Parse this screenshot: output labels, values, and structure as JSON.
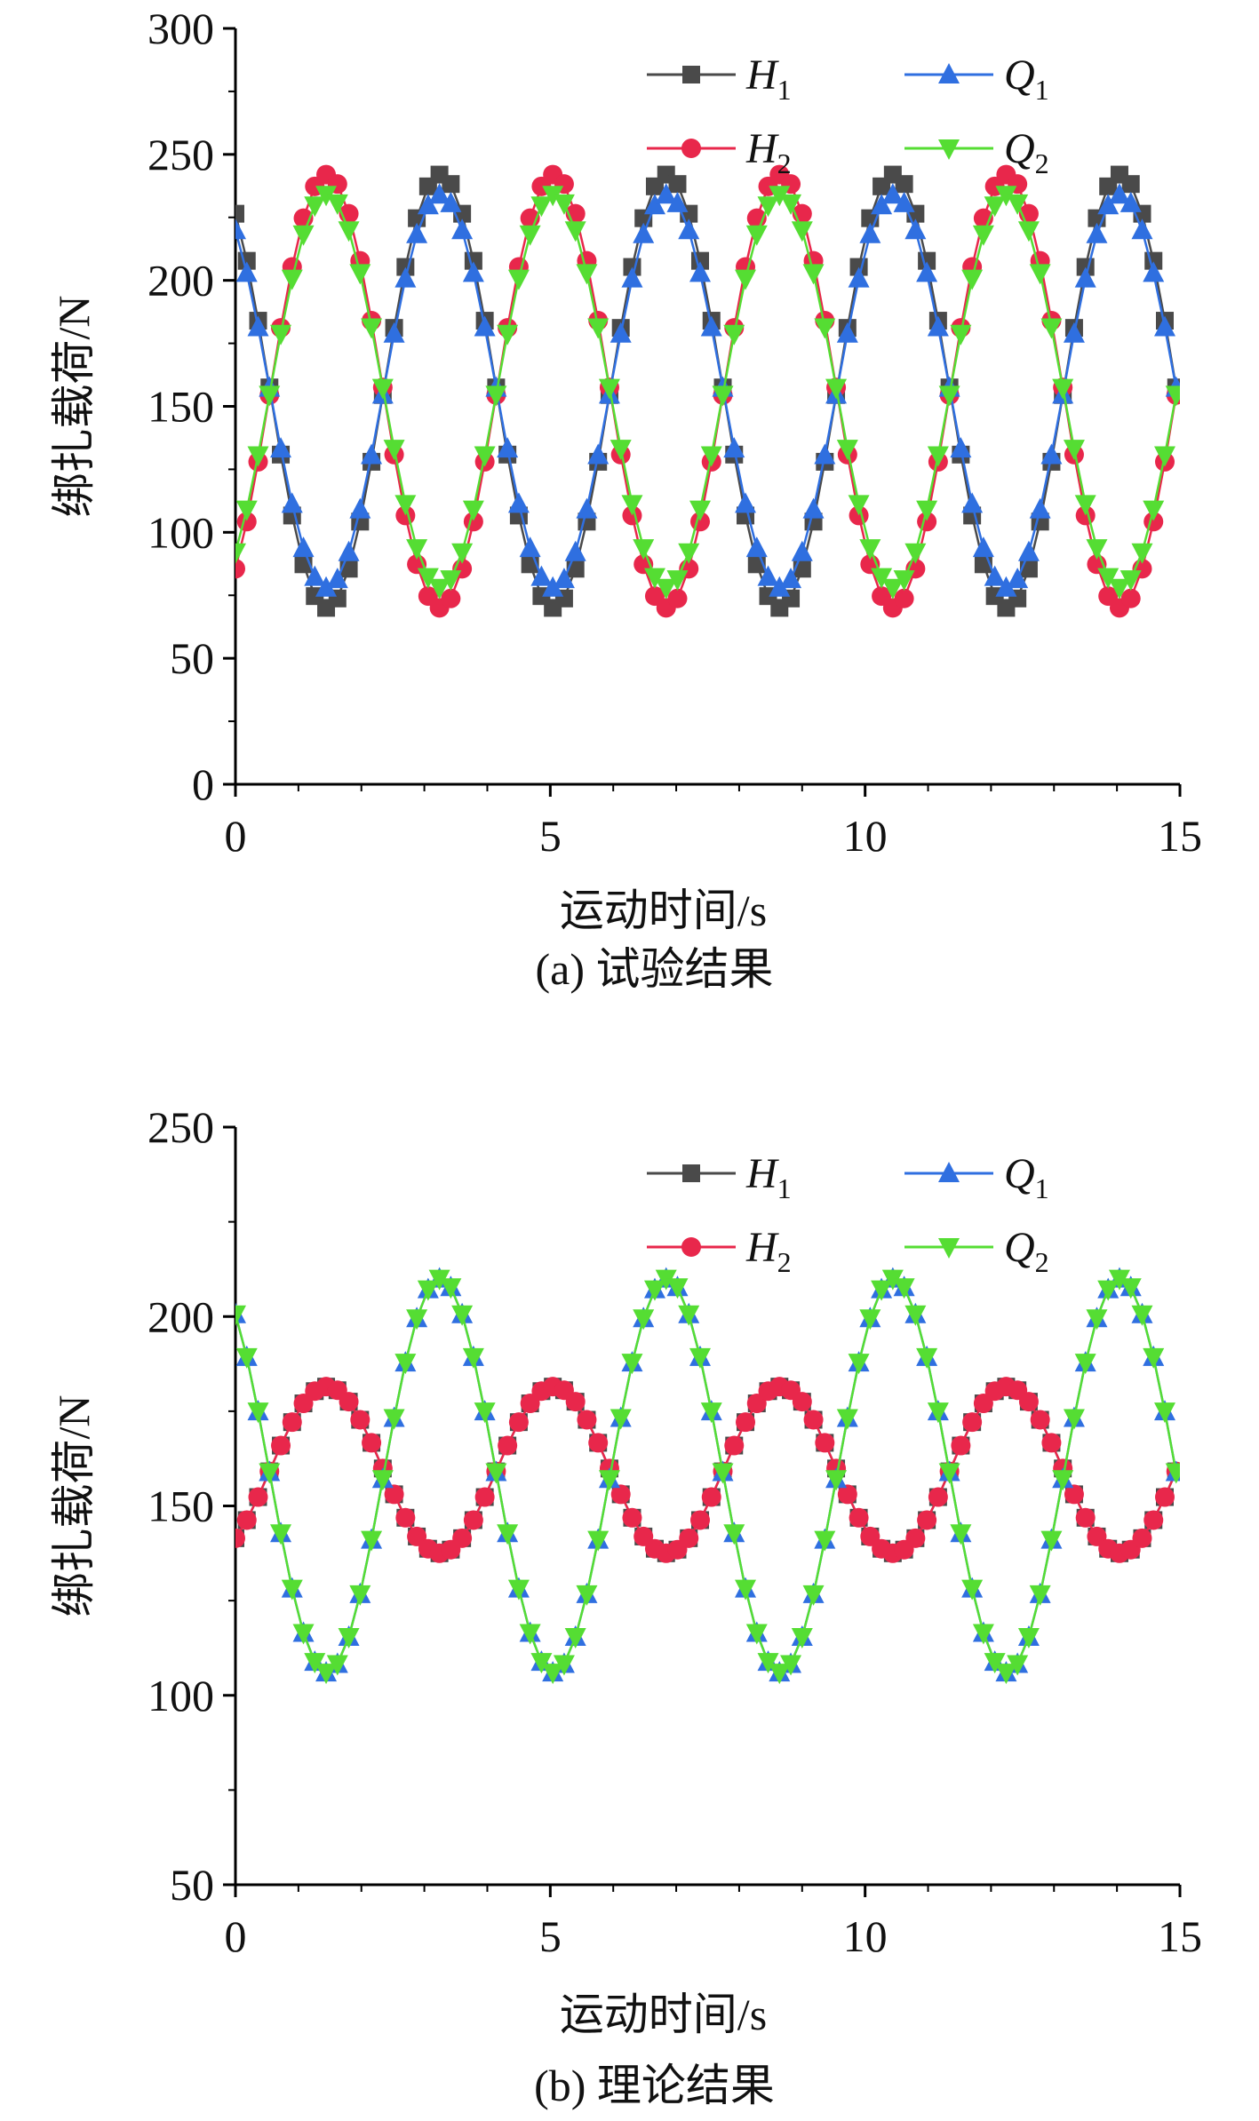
{
  "chart_data": [
    {
      "id": "a",
      "type": "line",
      "caption": "(a) 试验结果",
      "xlabel": "运动时间/s",
      "ylabel": "绑扎载荷/N",
      "xlim": [
        0,
        15
      ],
      "ylim": [
        0,
        300
      ],
      "xticks": [
        0,
        5,
        10,
        15
      ],
      "yticks": [
        0,
        50,
        100,
        150,
        200,
        250,
        300
      ],
      "grid": false,
      "legend_position": "top-right",
      "x_sampling": {
        "start": 0,
        "end": 15,
        "step": 0.18
      },
      "series": [
        {
          "name": "H",
          "sub": "1",
          "color": "#4a4a4a",
          "marker": "square",
          "model": {
            "mean": 156,
            "amp": 86,
            "period": 3.6,
            "phase_time": 3.25
          }
        },
        {
          "name": "H",
          "sub": "2",
          "color": "#e8274b",
          "marker": "circle",
          "model": {
            "mean": 156,
            "amp": 86,
            "period": 3.6,
            "phase_time": 1.45
          }
        },
        {
          "name": "Q",
          "sub": "1",
          "color": "#2f6fe0",
          "marker": "triangle-up",
          "model": {
            "mean": 156,
            "amp": 78,
            "period": 3.6,
            "phase_time": 3.25
          }
        },
        {
          "name": "Q",
          "sub": "2",
          "color": "#55dd33",
          "marker": "triangle-down",
          "model": {
            "mean": 156,
            "amp": 78,
            "period": 3.6,
            "phase_time": 1.45
          }
        }
      ]
    },
    {
      "id": "b",
      "type": "line",
      "caption": "(b) 理论结果",
      "xlabel": "运动时间/s",
      "ylabel": "绑扎载荷/N",
      "xlim": [
        0,
        15
      ],
      "ylim": [
        50,
        250
      ],
      "xticks": [
        0,
        5,
        10,
        15
      ],
      "yticks": [
        50,
        100,
        150,
        200,
        250
      ],
      "grid": false,
      "legend_position": "top-right",
      "x_sampling": {
        "start": 0,
        "end": 15,
        "step": 0.18
      },
      "series": [
        {
          "name": "H",
          "sub": "1",
          "color": "#4a4a4a",
          "marker": "square",
          "model": {
            "mean": 159.5,
            "amp": 22,
            "period": 3.6,
            "phase_time": 1.45
          }
        },
        {
          "name": "H",
          "sub": "2",
          "color": "#e8274b",
          "marker": "circle",
          "model": {
            "mean": 159.5,
            "amp": 22,
            "period": 3.6,
            "phase_time": 1.45
          }
        },
        {
          "name": "Q",
          "sub": "1",
          "color": "#2f6fe0",
          "marker": "triangle-up",
          "model": {
            "mean": 158,
            "amp": 52,
            "period": 3.6,
            "phase_time": 3.25
          }
        },
        {
          "name": "Q",
          "sub": "2",
          "color": "#55dd33",
          "marker": "triangle-down",
          "model": {
            "mean": 158,
            "amp": 52,
            "period": 3.6,
            "phase_time": 3.25
          }
        }
      ]
    }
  ]
}
